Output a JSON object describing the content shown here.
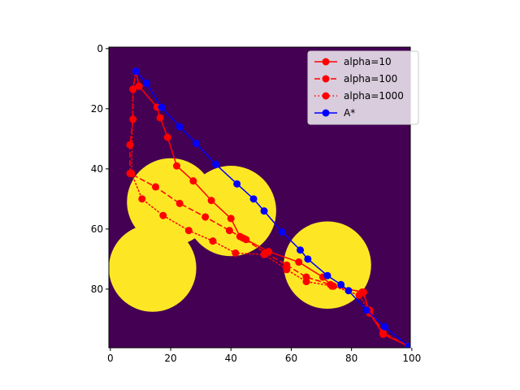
{
  "chart_data": {
    "type": "line",
    "image_background": {
      "grid_size": 100,
      "colors": {
        "free": "#440154",
        "obstacle": "#fde725"
      },
      "obstacles": [
        {
          "shape": "circle",
          "cx": 20,
          "cy": 51,
          "r": 14.5
        },
        {
          "shape": "circle",
          "cx": 14,
          "cy": 73,
          "r": 14.5
        },
        {
          "shape": "circle",
          "cx": 40,
          "cy": 54,
          "r": 15
        },
        {
          "shape": "circle",
          "cx": 72,
          "cy": 72,
          "r": 14.5
        }
      ]
    },
    "xlim": [
      -0.5,
      99.5
    ],
    "ylim": [
      99.5,
      -0.5
    ],
    "x_ticks": [
      0,
      20,
      40,
      60,
      80,
      100
    ],
    "y_ticks": [
      0,
      20,
      40,
      60,
      80
    ],
    "legend_position": "upper-right",
    "series": [
      {
        "name": "alpha=10",
        "color": "#ff0000",
        "linestyle": "solid",
        "marker": "o",
        "points": [
          [
            8.5,
            7.5
          ],
          [
            9.5,
            12.5
          ],
          [
            15.5,
            19.5
          ],
          [
            16.5,
            23
          ],
          [
            19,
            29.5
          ],
          [
            22,
            39
          ],
          [
            27.5,
            44
          ],
          [
            33.5,
            50.5
          ],
          [
            40,
            56.5
          ],
          [
            43,
            62.5
          ],
          [
            45,
            63.5
          ],
          [
            52.5,
            67.5
          ],
          [
            62.5,
            71
          ],
          [
            70.5,
            76
          ],
          [
            73.5,
            79
          ],
          [
            84,
            81
          ],
          [
            86,
            88
          ],
          [
            90.5,
            95
          ],
          [
            99,
            99
          ]
        ]
      },
      {
        "name": "alpha=100",
        "color": "#ff0000",
        "linestyle": "dashed",
        "marker": "o",
        "points": [
          [
            8.5,
            7.5
          ],
          [
            7.5,
            13.5
          ],
          [
            7.5,
            23.5
          ],
          [
            6.5,
            32
          ],
          [
            6.5,
            41.5
          ],
          [
            15,
            46
          ],
          [
            23,
            51.5
          ],
          [
            31.5,
            56
          ],
          [
            39.5,
            60.5
          ],
          [
            44,
            63
          ],
          [
            51.5,
            68
          ],
          [
            58.5,
            72
          ],
          [
            65,
            76
          ],
          [
            73,
            78.5
          ],
          [
            83.5,
            81
          ],
          [
            86,
            87
          ],
          [
            90.5,
            94.5
          ],
          [
            99,
            99
          ]
        ]
      },
      {
        "name": "alpha=1000",
        "color": "#ff0000",
        "linestyle": "dotted",
        "marker": "o",
        "points": [
          [
            8.5,
            7.5
          ],
          [
            7.5,
            13.5
          ],
          [
            7,
            41.5
          ],
          [
            10.5,
            50
          ],
          [
            17.5,
            55.5
          ],
          [
            26,
            60.5
          ],
          [
            34,
            64
          ],
          [
            41.5,
            68
          ],
          [
            51,
            68.5
          ],
          [
            58.5,
            73.5
          ],
          [
            65,
            77.5
          ],
          [
            74,
            79
          ],
          [
            82.5,
            82
          ],
          [
            86,
            87.5
          ],
          [
            90.5,
            95
          ],
          [
            99,
            99
          ]
        ]
      },
      {
        "name": "A*",
        "color": "#0000ff",
        "linestyle": "solid",
        "marker": "o",
        "points": [
          [
            8.5,
            7.5
          ],
          [
            12,
            11.5
          ],
          [
            17,
            19.5
          ],
          [
            23,
            26
          ],
          [
            28.5,
            31.5
          ],
          [
            35,
            38.5
          ],
          [
            42,
            45
          ],
          [
            47.5,
            50
          ],
          [
            51,
            54
          ],
          [
            57,
            61
          ],
          [
            63,
            67
          ],
          [
            65.5,
            70
          ],
          [
            72,
            75.5
          ],
          [
            76.5,
            78.5
          ],
          [
            79,
            80.5
          ],
          [
            85,
            87
          ],
          [
            91,
            92.5
          ],
          [
            99,
            99
          ]
        ]
      }
    ]
  }
}
